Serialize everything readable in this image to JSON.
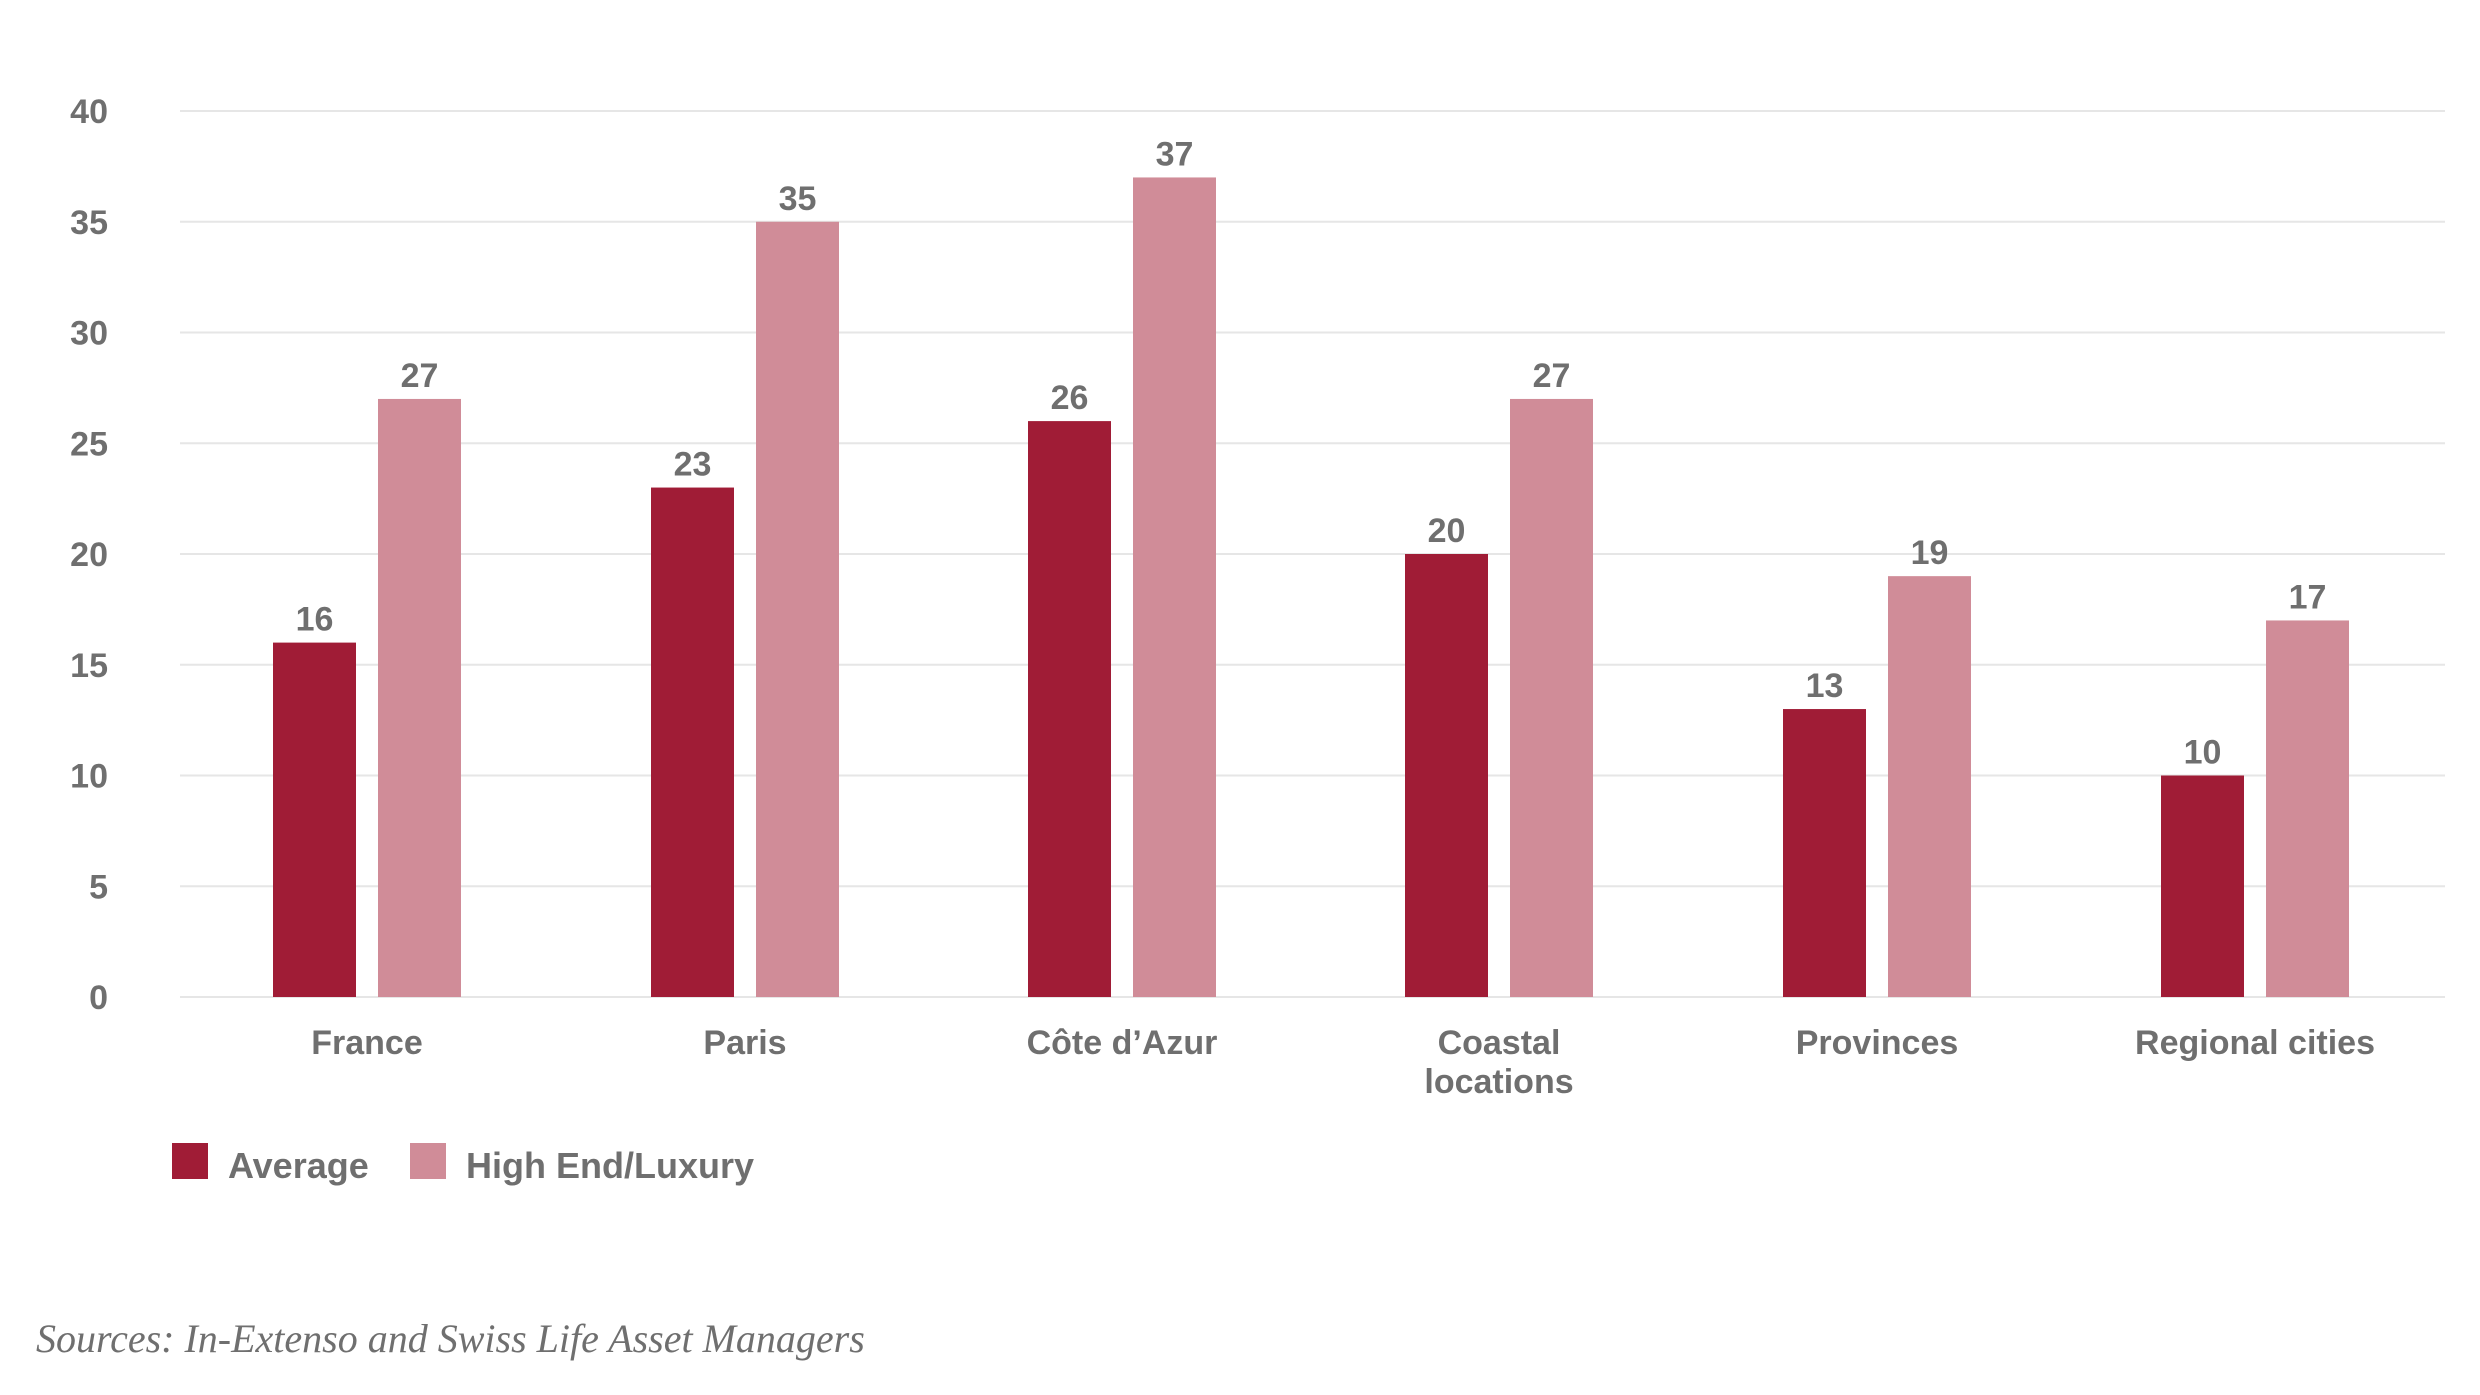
{
  "chart_data": {
    "type": "bar",
    "categories": [
      [
        "France"
      ],
      [
        "Paris"
      ],
      [
        "Côte d’Azur"
      ],
      [
        "Coastal",
        "locations"
      ],
      [
        "Provinces"
      ],
      [
        "Regional cities"
      ]
    ],
    "series": [
      {
        "name": "Average",
        "color": "#a01c36",
        "values": [
          16,
          23,
          26,
          20,
          13,
          10
        ]
      },
      {
        "name": "High End/Luxury",
        "color": "#d08c98",
        "values": [
          27,
          35,
          37,
          27,
          19,
          17
        ]
      }
    ],
    "ylim": [
      0,
      40
    ],
    "yticks": [
      0,
      5,
      10,
      15,
      20,
      25,
      30,
      35,
      40
    ],
    "grid": true,
    "gridline_color": "#e6e6e6",
    "legend_position": "bottom-left",
    "source": "Sources: In-Extenso and Swiss Life Asset Managers",
    "xlabel": "",
    "ylabel": ""
  }
}
